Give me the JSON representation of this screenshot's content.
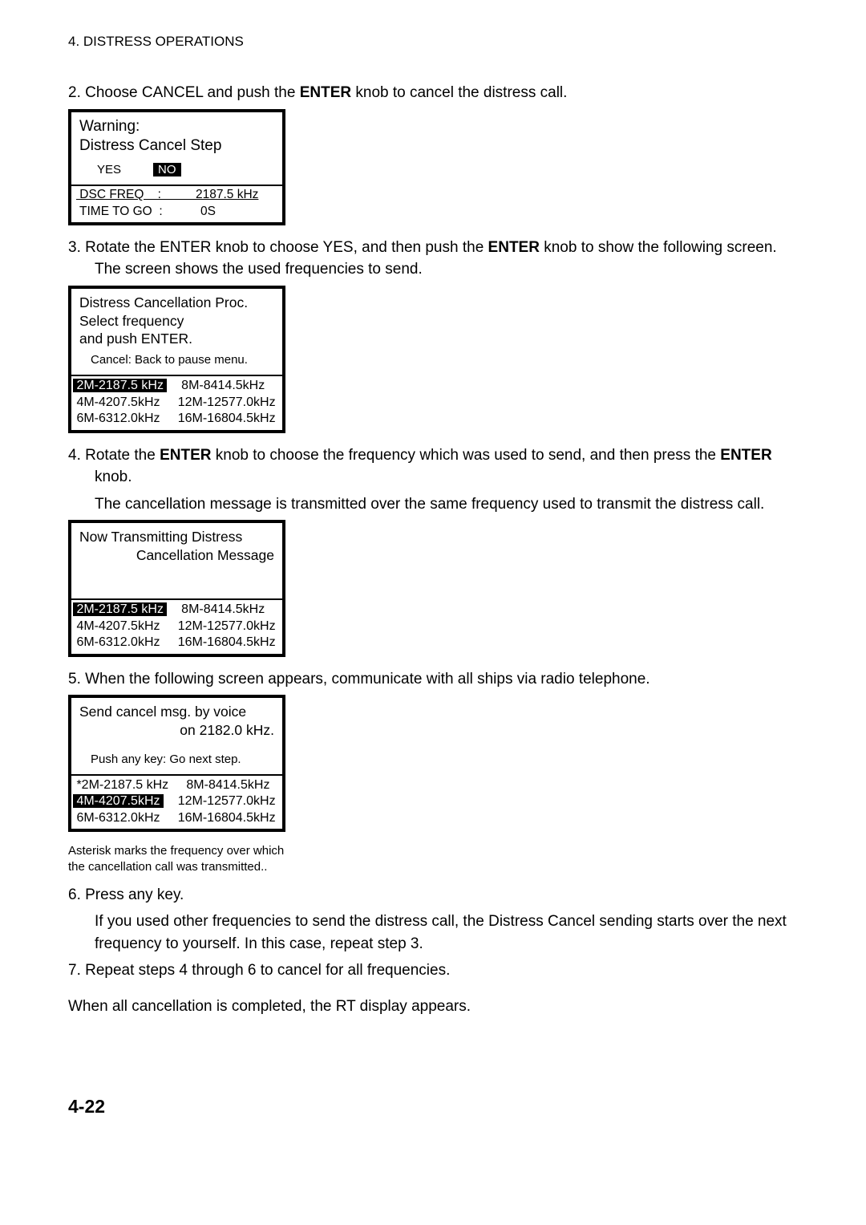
{
  "header": "4. DISTRESS OPERATIONS",
  "step2_part1": "2.  Choose CANCEL and push the ",
  "step2_bold": "ENTER",
  "step2_part2": " knob to cancel the distress call.",
  "warning_box": {
    "line1": "Warning:",
    "line2": " Distress Cancel Step",
    "yes": "YES",
    "no": "NO",
    "dsc_row": " DSC FREQ    :          2187.5 kHz",
    "time_row": " TIME TO GO  :           0S"
  },
  "step3_p1": "3.  Rotate the ENTER knob to choose YES, and then push the ",
  "step3_b": "ENTER",
  "step3_p2": " knob to show the following screen. The screen shows the used frequencies to send.",
  "proc_box": {
    "l1": "Distress Cancellation Proc.",
    "l2": "Select frequency",
    "l3": "and push ENTER.",
    "cancel": "Cancel: Back to pause menu.",
    "freq_hl": " 2M-2187.5 kHz ",
    "freq_r1b": "    8M-8414.5kHz",
    "freq_r2": " 4M-4207.5kHz     12M-12577.0kHz",
    "freq_r3": " 6M-6312.0kHz     16M-16804.5kHz"
  },
  "step4_p1": "4.  Rotate the ",
  "step4_b1": "ENTER",
  "step4_p2": " knob to choose the frequency which was used to send, and then press the ",
  "step4_b2": "ENTER",
  "step4_p3": " knob.",
  "step4_body": "The cancellation message is transmitted over the same frequency used to transmit the distress call.",
  "tx_box": {
    "l1": "Now Transmitting  Distress",
    "l2": "Cancellation Message",
    "freq_hl": " 2M-2187.5 kHz ",
    "freq_r1b": "    8M-8414.5kHz",
    "freq_r2": " 4M-4207.5kHz     12M-12577.0kHz",
    "freq_r3": " 6M-6312.0kHz     16M-16804.5kHz"
  },
  "step5": "5.  When the following screen appears, communicate with all ships via radio telephone.",
  "send_box": {
    "l1": "Send cancel msg. by voice",
    "l2": "on 2182.0 kHz.",
    "push": "Push any key: Go next step.",
    "freq_r1": " *2M-2187.5 kHz     8M-8414.5kHz",
    "freq_hl": " 4M-4207.5kHz ",
    "freq_r2b": "    12M-12577.0kHz",
    "freq_r3": " 6M-6312.0kHz     16M-16804.5kHz"
  },
  "asterisk_l1": "Asterisk marks the frequency over which",
  "asterisk_l2": "the cancellation call was transmitted..",
  "step6": "6.  Press any key.",
  "step6_body": "If you used other frequencies to send the distress call, the Distress Cancel sending starts over the next frequency to yourself. In this case, repeat step 3.",
  "step7": "7.  Repeat steps 4 through 6 to cancel for all frequencies.",
  "final": "When all cancellation is completed, the RT display appears.",
  "page_number": "4-22"
}
